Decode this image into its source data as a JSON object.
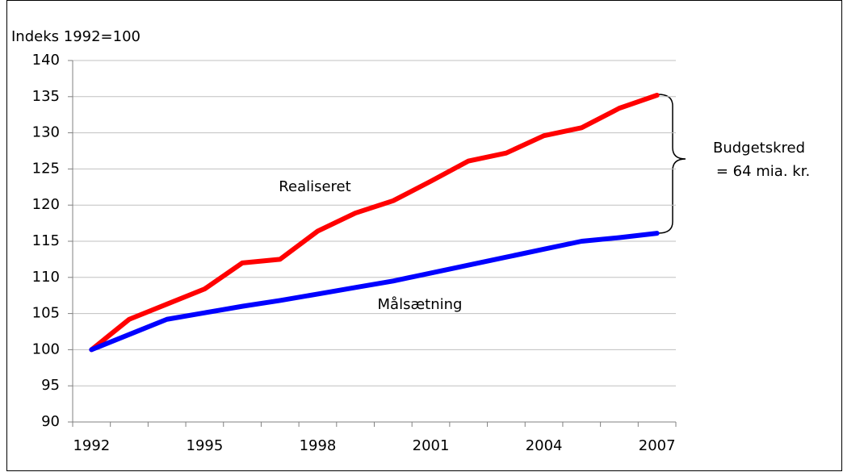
{
  "chart_data": {
    "type": "line",
    "y_label": "Indeks 1992=100",
    "categories": [
      "1992",
      null,
      null,
      "1995",
      null,
      null,
      "1998",
      null,
      null,
      "2001",
      null,
      null,
      "2004",
      null,
      null,
      "2007"
    ],
    "series": [
      {
        "name": "Realiseret",
        "color": "#ff0000",
        "values": [
          100,
          104.2,
          106.3,
          108.4,
          112,
          112.5,
          116.4,
          118.9,
          120.6,
          123.3,
          126.1,
          127.2,
          129.6,
          130.7,
          133.4,
          135.2
        ]
      },
      {
        "name": "Målsætning",
        "color": "#0000ff",
        "values": [
          100,
          102.1,
          104.2,
          105.1,
          106,
          106.8,
          107.7,
          108.6,
          109.5,
          110.6,
          111.7,
          112.8,
          113.9,
          115,
          115.5,
          116.1
        ]
      }
    ],
    "annotation": [
      "Budgetskred",
      "= 64 mia. kr."
    ],
    "ylim": [
      90,
      140
    ],
    "yticks": [
      90,
      95,
      100,
      105,
      110,
      115,
      120,
      125,
      130,
      135,
      140
    ],
    "grid": true
  }
}
